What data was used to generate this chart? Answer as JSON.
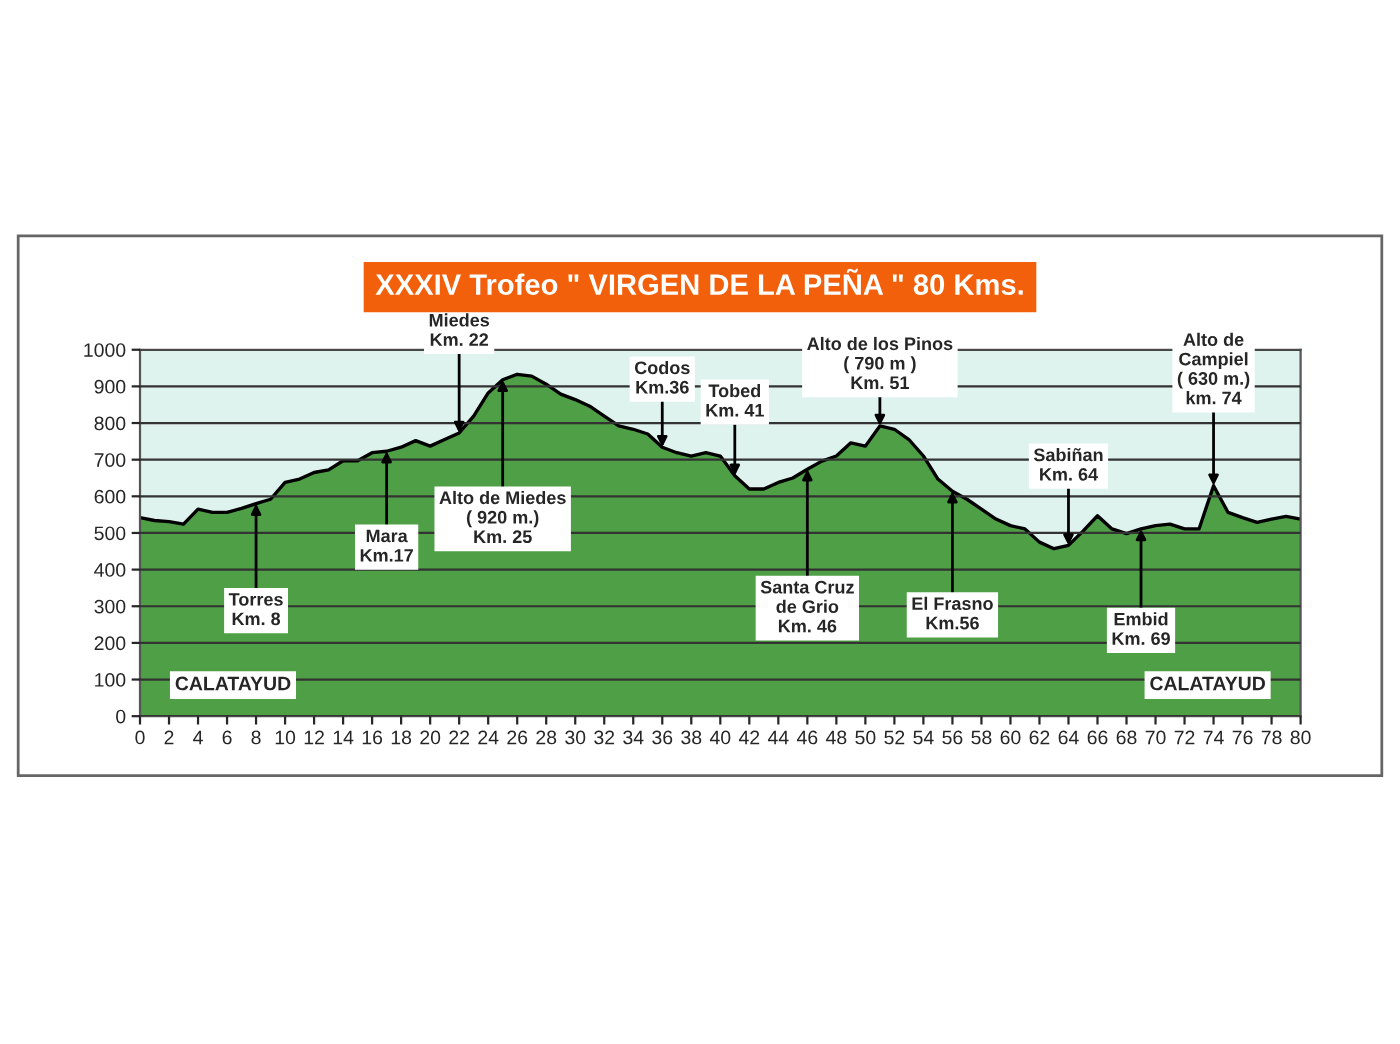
{
  "chart_data": {
    "type": "area",
    "title": "XXXIV Trofeo \" VIRGEN DE LA PEÑA \" 80 Kms.",
    "x": [
      0,
      1,
      2,
      3,
      4,
      5,
      6,
      7,
      8,
      9,
      10,
      11,
      12,
      13,
      14,
      15,
      16,
      17,
      18,
      19,
      20,
      21,
      22,
      23,
      24,
      25,
      26,
      27,
      28,
      29,
      30,
      31,
      32,
      33,
      34,
      35,
      36,
      37,
      38,
      39,
      40,
      41,
      42,
      43,
      44,
      45,
      46,
      47,
      48,
      49,
      50,
      51,
      52,
      53,
      54,
      55,
      56,
      57,
      58,
      59,
      60,
      61,
      62,
      63,
      64,
      65,
      66,
      67,
      68,
      69,
      70,
      71,
      72,
      73,
      74,
      75,
      76,
      77,
      78,
      79,
      80
    ],
    "series": [
      {
        "color": "#4e9f45",
        "values": [
          542,
          534,
          531,
          524,
          565,
          556,
          556,
          567,
          580,
          592,
          638,
          647,
          665,
          672,
          697,
          697,
          719,
          723,
          734,
          752,
          737,
          755,
          773,
          819,
          882,
          918,
          933,
          928,
          906,
          879,
          864,
          846,
          819,
          792,
          783,
          770,
          734,
          719,
          710,
          719,
          710,
          656,
          620,
          620,
          638,
          650,
          674,
          696,
          710,
          746,
          737,
          792,
          783,
          755,
          710,
          647,
          614,
          592,
          565,
          538,
          520,
          511,
          475,
          457,
          466,
          505,
          547,
          511,
          498,
          511,
          520,
          524,
          511,
          511,
          629,
          556,
          542,
          529,
          538,
          545,
          538
        ]
      }
    ],
    "xlim": [
      0,
      80
    ],
    "xticks": [
      0,
      2,
      4,
      6,
      8,
      10,
      12,
      14,
      16,
      18,
      20,
      22,
      24,
      26,
      28,
      30,
      32,
      34,
      36,
      38,
      40,
      42,
      44,
      46,
      48,
      50,
      52,
      54,
      56,
      58,
      60,
      62,
      64,
      66,
      68,
      70,
      72,
      74,
      76,
      78,
      80
    ],
    "ylim": [
      0,
      1000
    ],
    "yticks": [
      0,
      100,
      200,
      300,
      400,
      500,
      600,
      700,
      800,
      900,
      1000
    ],
    "grid": "y",
    "annotations": [
      {
        "text": "Torres\nKm. 8",
        "x": 8,
        "y": 580
      },
      {
        "text": "Mara\nKm.17",
        "x": 17,
        "y": 723
      },
      {
        "text": "Miedes\nKm. 22",
        "x": 22,
        "y": 773
      },
      {
        "text": "Alto de Miedes\n( 920 m.)\nKm. 25",
        "x": 25,
        "y": 918
      },
      {
        "text": "Codos\nKm.36",
        "x": 36,
        "y": 734
      },
      {
        "text": "Tobed\nKm. 41",
        "x": 41,
        "y": 656
      },
      {
        "text": "Santa Cruz\nde Grio\nKm. 46",
        "x": 46,
        "y": 674
      },
      {
        "text": "Alto de los Pinos\n( 790 m )\nKm. 51",
        "x": 51,
        "y": 792
      },
      {
        "text": "El Frasno\nKm.56",
        "x": 56,
        "y": 614
      },
      {
        "text": "Sabiñan\nKm. 64",
        "x": 64,
        "y": 466
      },
      {
        "text": "Embid\nKm. 69",
        "x": 69,
        "y": 511
      },
      {
        "text": "Alto de\nCampiel\n( 630 m.)\nkm. 74",
        "x": 74,
        "y": 629
      },
      "CALATAYUD",
      "CALATAYUD"
    ]
  }
}
